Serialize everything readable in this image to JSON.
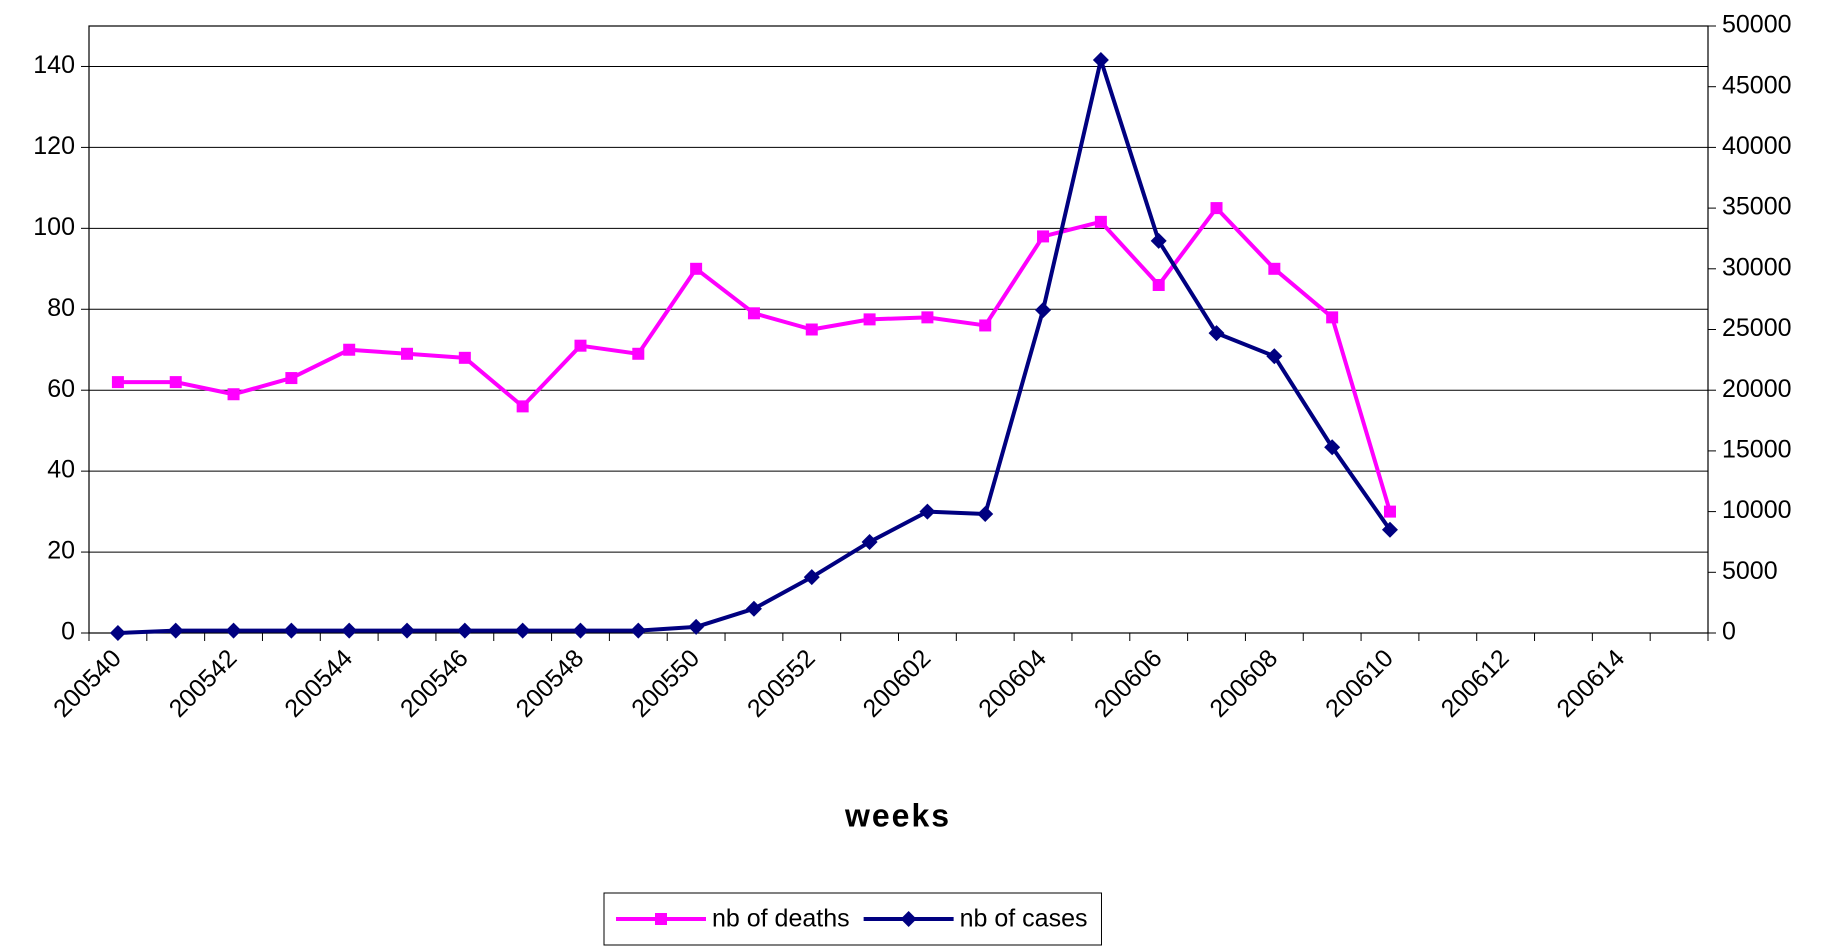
{
  "chart_data": {
    "type": "line",
    "x_label": "weeks",
    "categories": [
      "200540",
      null,
      "200542",
      null,
      "200544",
      null,
      "200546",
      null,
      "200548",
      null,
      "200550",
      null,
      "200552",
      null,
      "200602",
      null,
      "200604",
      null,
      "200606",
      null,
      "200608",
      null,
      "200610",
      null,
      "200612",
      null,
      "200614",
      null
    ],
    "series": [
      {
        "name": "nb of deaths",
        "color": "#ff00ff",
        "marker": "square",
        "values": [
          62,
          62,
          59,
          63,
          70,
          69,
          68,
          56,
          71,
          69,
          90,
          79,
          75,
          77.5,
          78,
          76,
          98,
          101.6,
          86,
          105,
          90,
          78,
          30,
          null,
          null,
          null,
          null,
          null
        ]
      },
      {
        "name": "nb of cases",
        "color": "#000080",
        "marker": "diamond",
        "axis": "y2",
        "values": [
          0,
          200,
          200,
          200,
          200,
          200,
          200,
          200,
          200,
          200,
          500,
          2000,
          4600,
          7500,
          10000,
          9800,
          26600,
          47200,
          32300,
          24700,
          22800,
          15300,
          8500,
          null,
          null,
          null,
          null,
          null
        ]
      }
    ],
    "ylim": [
      0,
      150
    ],
    "yticks": [
      0,
      20,
      40,
      60,
      80,
      100,
      120,
      140
    ],
    "y2lim": [
      0,
      50000
    ],
    "y2ticks": [
      0,
      5000,
      10000,
      15000,
      20000,
      25000,
      30000,
      35000,
      40000,
      45000,
      50000
    ],
    "grid": true,
    "legend": "bottom"
  }
}
